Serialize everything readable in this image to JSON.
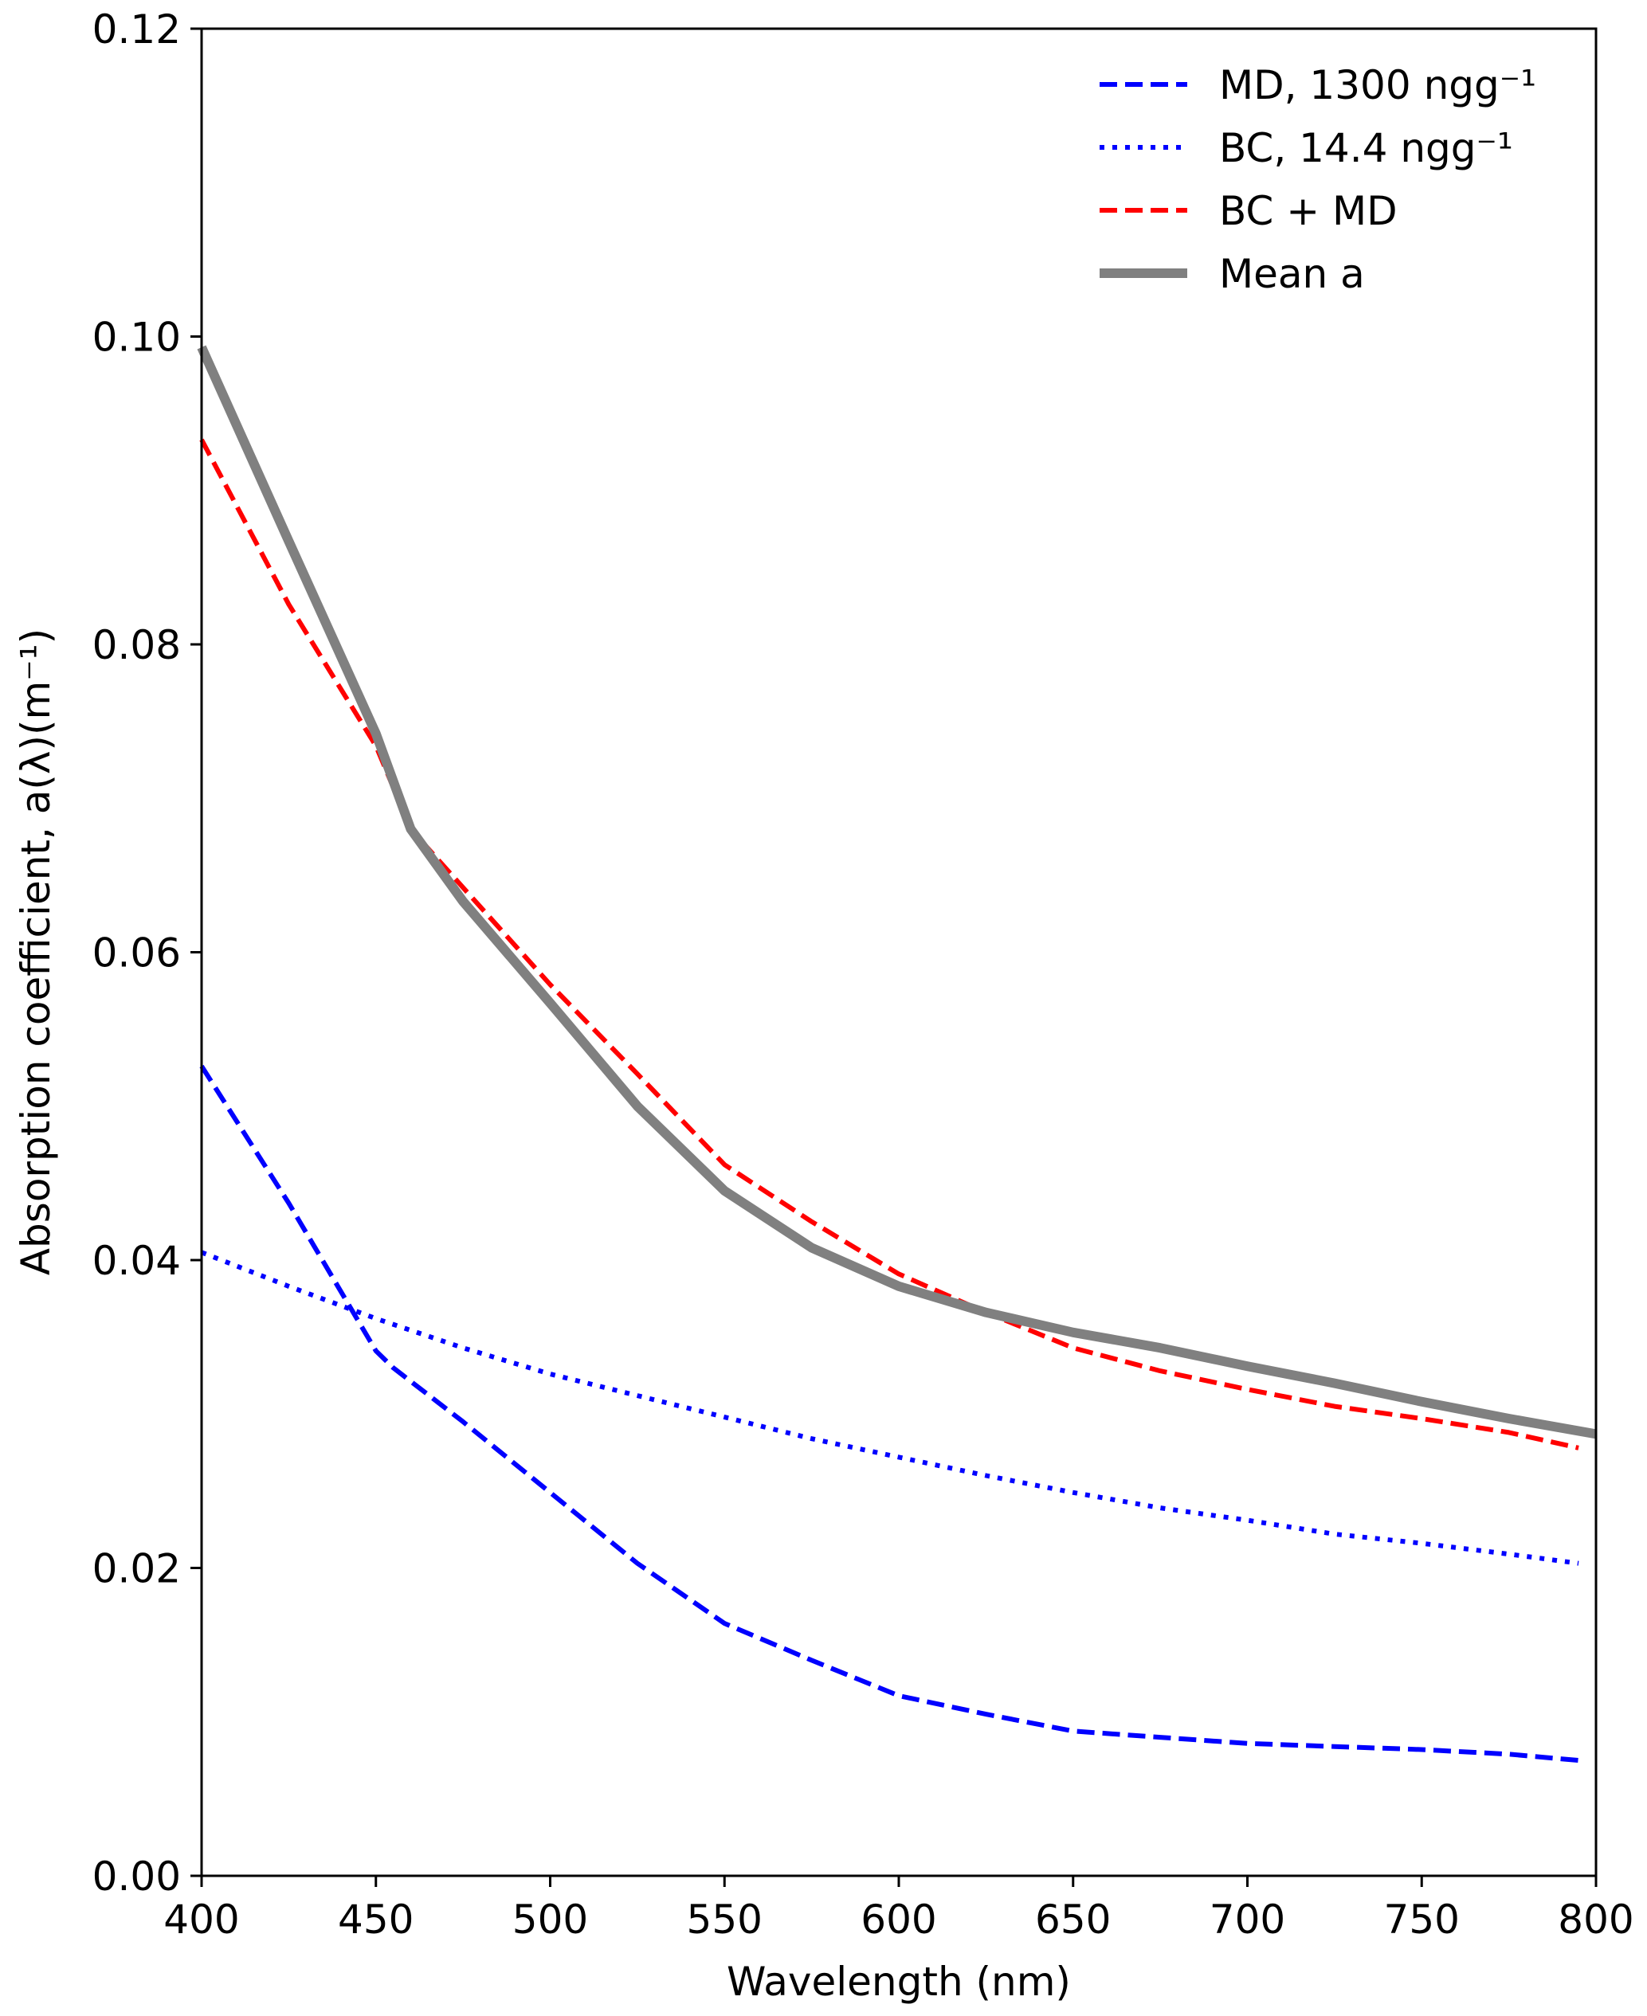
{
  "chart_data": {
    "type": "line",
    "title": "",
    "xlabel": "Wavelength (nm)",
    "ylabel": "Absorption coefficient, a(λ)(m⁻¹)",
    "xlim": [
      400,
      800
    ],
    "ylim": [
      0,
      0.12
    ],
    "xticks": [
      "400",
      "450",
      "500",
      "550",
      "600",
      "650",
      "700",
      "750",
      "800"
    ],
    "yticks": [
      "0.00",
      "0.02",
      "0.04",
      "0.06",
      "0.08",
      "0.10",
      "0.12"
    ],
    "grid": false,
    "legend_position": "top-right",
    "series": [
      {
        "name": "MD, 1300 ngg⁻¹",
        "color": "#0000ff",
        "style": "dashed",
        "x": [
          400,
          425,
          450,
          455,
          475,
          500,
          525,
          550,
          575,
          600,
          625,
          650,
          675,
          700,
          725,
          750,
          775,
          795
        ],
        "y": [
          0.0526,
          0.0437,
          0.0341,
          0.033,
          0.0295,
          0.0249,
          0.0203,
          0.0164,
          0.014,
          0.0117,
          0.0105,
          0.0094,
          0.009,
          0.0086,
          0.0084,
          0.0082,
          0.0079,
          0.0075
        ]
      },
      {
        "name": "BC, 14.4 ngg⁻¹",
        "color": "#0000ff",
        "style": "dotted",
        "x": [
          400,
          425,
          450,
          475,
          500,
          525,
          550,
          575,
          600,
          625,
          650,
          675,
          700,
          725,
          750,
          775,
          795
        ],
        "y": [
          0.0405,
          0.0383,
          0.0362,
          0.0343,
          0.0326,
          0.0312,
          0.0298,
          0.0284,
          0.0272,
          0.026,
          0.0249,
          0.0239,
          0.0231,
          0.0222,
          0.0216,
          0.0209,
          0.0203
        ]
      },
      {
        "name": "BC + MD",
        "color": "#ff0000",
        "style": "dashed",
        "x": [
          400,
          425,
          450,
          460,
          475,
          500,
          525,
          550,
          575,
          600,
          625,
          650,
          675,
          700,
          725,
          750,
          775,
          795
        ],
        "y": [
          0.0933,
          0.0826,
          0.0734,
          0.068,
          0.0642,
          0.0579,
          0.0521,
          0.0462,
          0.0425,
          0.0391,
          0.0366,
          0.0343,
          0.0328,
          0.0316,
          0.0305,
          0.0297,
          0.0288,
          0.0278
        ]
      },
      {
        "name": "Mean a",
        "color": "#808080",
        "style": "solid",
        "x": [
          400,
          425,
          450,
          460,
          475,
          500,
          525,
          550,
          575,
          600,
          625,
          650,
          675,
          700,
          725,
          750,
          775,
          800
        ],
        "y": [
          0.0993,
          0.0867,
          0.0742,
          0.068,
          0.0633,
          0.0567,
          0.05,
          0.0445,
          0.0408,
          0.0383,
          0.0366,
          0.0353,
          0.0343,
          0.0331,
          0.032,
          0.0308,
          0.0297,
          0.0287
        ]
      }
    ]
  }
}
